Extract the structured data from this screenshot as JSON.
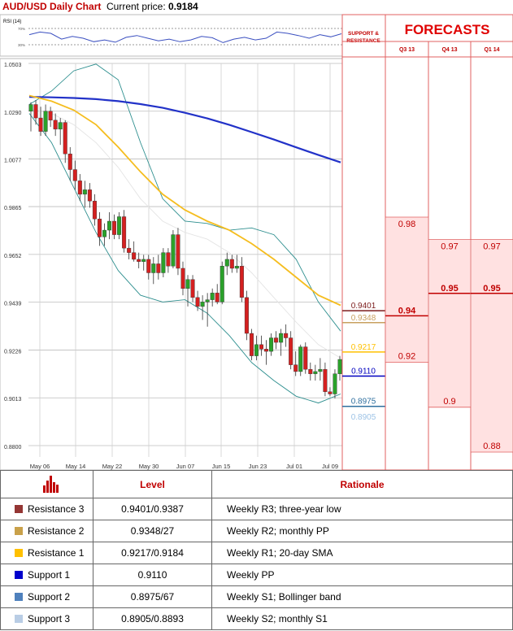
{
  "chart_data": {
    "type": "candlestick",
    "title": "AUD/USD Daily Chart",
    "price_label": "Current price:",
    "current_price": "0.9184",
    "y_ticks": [
      "1.0503",
      "1.0290",
      "1.0077",
      "0.9865",
      "0.9652",
      "0.9439",
      "0.9226",
      "0.9013",
      "0.8800"
    ],
    "ylim": [
      0.88,
      1.0503
    ],
    "x_ticks": [
      "May 06",
      "May 14",
      "May 22",
      "May 30",
      "Jun 07",
      "Jun 15",
      "Jun 23",
      "Jul 01",
      "Jul 09"
    ],
    "candles": [
      {
        "o": 1.029,
        "h": 1.033,
        "l": 1.02,
        "c": 1.032
      },
      {
        "o": 1.032,
        "h": 1.034,
        "l": 1.023,
        "c": 1.026
      },
      {
        "o": 1.026,
        "h": 1.031,
        "l": 1.018,
        "c": 1.02
      },
      {
        "o": 1.02,
        "h": 1.032,
        "l": 1.018,
        "c": 1.029
      },
      {
        "o": 1.029,
        "h": 1.031,
        "l": 1.022,
        "c": 1.025
      },
      {
        "o": 1.025,
        "h": 1.028,
        "l": 1.018,
        "c": 1.021
      },
      {
        "o": 1.021,
        "h": 1.026,
        "l": 1.014,
        "c": 1.024
      },
      {
        "o": 1.024,
        "h": 1.025,
        "l": 1.006,
        "c": 1.01
      },
      {
        "o": 1.01,
        "h": 1.013,
        "l": 0.998,
        "c": 1.003
      },
      {
        "o": 1.003,
        "h": 1.007,
        "l": 0.994,
        "c": 0.998
      },
      {
        "o": 0.998,
        "h": 1.001,
        "l": 0.989,
        "c": 0.992
      },
      {
        "o": 0.992,
        "h": 0.998,
        "l": 0.986,
        "c": 0.994
      },
      {
        "o": 0.994,
        "h": 0.997,
        "l": 0.986,
        "c": 0.989
      },
      {
        "o": 0.989,
        "h": 0.992,
        "l": 0.978,
        "c": 0.981
      },
      {
        "o": 0.981,
        "h": 0.984,
        "l": 0.969,
        "c": 0.973
      },
      {
        "o": 0.973,
        "h": 0.979,
        "l": 0.969,
        "c": 0.976
      },
      {
        "o": 0.976,
        "h": 0.984,
        "l": 0.972,
        "c": 0.98
      },
      {
        "o": 0.98,
        "h": 0.983,
        "l": 0.972,
        "c": 0.974
      },
      {
        "o": 0.974,
        "h": 0.984,
        "l": 0.972,
        "c": 0.982
      },
      {
        "o": 0.982,
        "h": 0.985,
        "l": 0.966,
        "c": 0.968
      },
      {
        "o": 0.968,
        "h": 0.972,
        "l": 0.963,
        "c": 0.966
      },
      {
        "o": 0.966,
        "h": 0.971,
        "l": 0.962,
        "c": 0.963
      },
      {
        "o": 0.963,
        "h": 0.966,
        "l": 0.959,
        "c": 0.962
      },
      {
        "o": 0.962,
        "h": 0.965,
        "l": 0.958,
        "c": 0.963
      },
      {
        "o": 0.963,
        "h": 0.965,
        "l": 0.954,
        "c": 0.957
      },
      {
        "o": 0.957,
        "h": 0.964,
        "l": 0.952,
        "c": 0.961
      },
      {
        "o": 0.961,
        "h": 0.965,
        "l": 0.954,
        "c": 0.957
      },
      {
        "o": 0.957,
        "h": 0.968,
        "l": 0.955,
        "c": 0.966
      },
      {
        "o": 0.966,
        "h": 0.968,
        "l": 0.957,
        "c": 0.96
      },
      {
        "o": 0.96,
        "h": 0.976,
        "l": 0.959,
        "c": 0.974
      },
      {
        "o": 0.974,
        "h": 0.977,
        "l": 0.956,
        "c": 0.959
      },
      {
        "o": 0.959,
        "h": 0.962,
        "l": 0.947,
        "c": 0.95
      },
      {
        "o": 0.95,
        "h": 0.956,
        "l": 0.942,
        "c": 0.954
      },
      {
        "o": 0.954,
        "h": 0.956,
        "l": 0.944,
        "c": 0.946
      },
      {
        "o": 0.946,
        "h": 0.949,
        "l": 0.94,
        "c": 0.942
      },
      {
        "o": 0.942,
        "h": 0.947,
        "l": 0.936,
        "c": 0.944
      },
      {
        "o": 0.944,
        "h": 0.948,
        "l": 0.933,
        "c": 0.945
      },
      {
        "o": 0.945,
        "h": 0.95,
        "l": 0.942,
        "c": 0.948
      },
      {
        "o": 0.948,
        "h": 0.952,
        "l": 0.943,
        "c": 0.944
      },
      {
        "o": 0.944,
        "h": 0.962,
        "l": 0.943,
        "c": 0.96
      },
      {
        "o": 0.96,
        "h": 0.966,
        "l": 0.956,
        "c": 0.963
      },
      {
        "o": 0.963,
        "h": 0.965,
        "l": 0.957,
        "c": 0.959
      },
      {
        "o": 0.959,
        "h": 0.965,
        "l": 0.957,
        "c": 0.96
      },
      {
        "o": 0.96,
        "h": 0.964,
        "l": 0.944,
        "c": 0.946
      },
      {
        "o": 0.946,
        "h": 0.949,
        "l": 0.927,
        "c": 0.93
      },
      {
        "o": 0.93,
        "h": 0.932,
        "l": 0.918,
        "c": 0.92
      },
      {
        "o": 0.92,
        "h": 0.929,
        "l": 0.918,
        "c": 0.925
      },
      {
        "o": 0.925,
        "h": 0.929,
        "l": 0.92,
        "c": 0.923
      },
      {
        "o": 0.923,
        "h": 0.927,
        "l": 0.916,
        "c": 0.922
      },
      {
        "o": 0.922,
        "h": 0.93,
        "l": 0.92,
        "c": 0.928
      },
      {
        "o": 0.928,
        "h": 0.931,
        "l": 0.923,
        "c": 0.926
      },
      {
        "o": 0.926,
        "h": 0.932,
        "l": 0.92,
        "c": 0.93
      },
      {
        "o": 0.93,
        "h": 0.934,
        "l": 0.924,
        "c": 0.928
      },
      {
        "o": 0.928,
        "h": 0.931,
        "l": 0.914,
        "c": 0.916
      },
      {
        "o": 0.916,
        "h": 0.922,
        "l": 0.911,
        "c": 0.913
      },
      {
        "o": 0.913,
        "h": 0.925,
        "l": 0.911,
        "c": 0.924
      },
      {
        "o": 0.924,
        "h": 0.926,
        "l": 0.912,
        "c": 0.914
      },
      {
        "o": 0.914,
        "h": 0.917,
        "l": 0.909,
        "c": 0.912
      },
      {
        "o": 0.912,
        "h": 0.916,
        "l": 0.909,
        "c": 0.913
      },
      {
        "o": 0.913,
        "h": 0.919,
        "l": 0.909,
        "c": 0.914
      },
      {
        "o": 0.914,
        "h": 0.917,
        "l": 0.902,
        "c": 0.904
      },
      {
        "o": 0.904,
        "h": 0.906,
        "l": 0.902,
        "c": 0.903
      },
      {
        "o": 0.903,
        "h": 0.914,
        "l": 0.901,
        "c": 0.912
      },
      {
        "o": 0.912,
        "h": 0.92,
        "l": 0.909,
        "c": 0.9184
      }
    ],
    "sma200": [
      1.0354,
      1.0352,
      1.0349,
      1.0344,
      1.0335,
      1.0322,
      1.0305,
      1.0283,
      1.0258,
      1.0229,
      1.0197,
      1.0164,
      1.0129,
      1.0095,
      1.0062
    ],
    "sma50": [
      1.036,
      1.0335,
      1.0295,
      1.023,
      1.013,
      1.002,
      0.992,
      0.985,
      0.98,
      0.976,
      0.97,
      0.963,
      0.955,
      0.947,
      0.9425
    ],
    "bb_upper": [
      1.032,
      1.038,
      1.047,
      1.05,
      1.043,
      1.015,
      0.99,
      0.98,
      0.979,
      0.976,
      0.977,
      0.974,
      0.963,
      0.944,
      0.931
    ],
    "bb_middle": [
      1.03,
      1.028,
      1.023,
      1.015,
      1.004,
      0.99,
      0.98,
      0.975,
      0.972,
      0.966,
      0.957,
      0.946,
      0.935,
      0.925,
      0.919
    ],
    "bb_lower": [
      1.028,
      1.015,
      0.995,
      0.975,
      0.958,
      0.947,
      0.944,
      0.945,
      0.939,
      0.929,
      0.917,
      0.909,
      0.902,
      0.899,
      0.903
    ],
    "rsi": {
      "label": "RSI (14)",
      "ticks": [
        "70%",
        "30%"
      ],
      "values": [
        52,
        58,
        55,
        42,
        48,
        44,
        36,
        40,
        35,
        46,
        50,
        44,
        38,
        42,
        36,
        40,
        48,
        45,
        34,
        42,
        46,
        40,
        44,
        58,
        55,
        50,
        44,
        52,
        47,
        54
      ]
    },
    "support_resistance": {
      "header": "SUPPORT & RESISTANCE",
      "levels": [
        {
          "label": "0.9401",
          "value": 0.9401,
          "color": "#7b1b1b"
        },
        {
          "label": "0.9348",
          "value": 0.9348,
          "color": "#c8a060"
        },
        {
          "label": "0.9217",
          "value": 0.9217,
          "color": "#ffc000"
        },
        {
          "label": "0.9110",
          "value": 0.911,
          "color": "#0000c0"
        },
        {
          "label": "0.8975",
          "value": 0.8975,
          "color": "#2f6f9f"
        },
        {
          "label": "0.8905",
          "value": 0.8905,
          "color": "#9dc3e6"
        }
      ]
    },
    "forecasts": {
      "title": "FORECASTS",
      "columns": [
        {
          "label": "Q3 13",
          "high": "0.98",
          "high_value": 0.98,
          "mid": "0.94",
          "mid_value": 0.94,
          "low": "0.92",
          "low_value": 0.92
        },
        {
          "label": "Q4 13",
          "high": "0.97",
          "high_value": 0.97,
          "mid": "0.95",
          "mid_value": 0.95,
          "low": "0.9",
          "low_value": 0.9
        },
        {
          "label": "Q1 14",
          "high": "0.97",
          "high_value": 0.97,
          "mid": "0.95",
          "mid_value": 0.95,
          "low": "0.88",
          "low_value": 0.88
        }
      ]
    }
  },
  "table": {
    "header_level": "Level",
    "header_rationale": "Rationale",
    "rows": [
      {
        "label": "Resistance 3",
        "level": "0.9401/0.9387",
        "rationale": "Weekly R3; three-year low",
        "color": "#943634"
      },
      {
        "label": "Resistance 2",
        "level": "0.9348/27",
        "rationale": "Weekly R2; monthly PP",
        "color": "#c9a14a"
      },
      {
        "label": "Resistance 1",
        "level": "0.9217/0.9184",
        "rationale": "Weekly R1; 20-day SMA",
        "color": "#ffc000"
      },
      {
        "label": "Support 1",
        "level": "0.9110",
        "rationale": "Weekly PP",
        "color": "#0000cc"
      },
      {
        "label": "Support 2",
        "level": "0.8975/67",
        "rationale": "Weekly S1; Bollinger band",
        "color": "#4f81bd"
      },
      {
        "label": "Support 3",
        "level": "0.8905/0.8893",
        "rationale": "Weekly S2; monthly S1",
        "color": "#b9cde5"
      }
    ]
  }
}
